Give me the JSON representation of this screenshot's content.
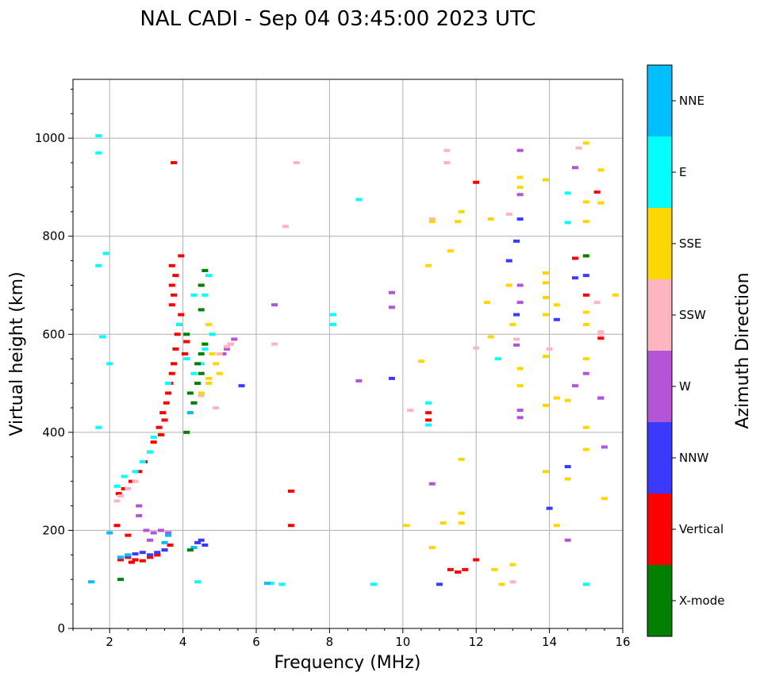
{
  "chart_data": {
    "type": "scatter",
    "title": "NAL CADI - Sep 04 03:45:00 2023 UTC",
    "xlabel": "Frequency (MHz)",
    "ylabel": "Virtual height (km)",
    "xlim": [
      1,
      16
    ],
    "ylim": [
      0,
      1120
    ],
    "xticks": [
      2,
      4,
      6,
      8,
      10,
      12,
      14,
      16
    ],
    "yticks": [
      0,
      200,
      400,
      600,
      800,
      1000
    ],
    "grid": true,
    "colorbar": {
      "label": "Azimuth Direction",
      "position": "right",
      "categories": [
        {
          "name": "X-mode",
          "color": "#008000"
        },
        {
          "name": "Vertical",
          "color": "#ff0000"
        },
        {
          "name": "NNW",
          "color": "#3a3aff"
        },
        {
          "name": "W",
          "color": "#b454d6"
        },
        {
          "name": "SSW",
          "color": "#ffb6c1"
        },
        {
          "name": "SSE",
          "color": "#ffd700"
        },
        {
          "name": "E",
          "color": "#00ffff"
        },
        {
          "name": "NNE",
          "color": "#00bfff"
        }
      ]
    },
    "series": [
      {
        "name": "Vertical",
        "color": "#ff0000",
        "points": [
          [
            2.3,
            140
          ],
          [
            2.5,
            145
          ],
          [
            2.7,
            140
          ],
          [
            2.9,
            138
          ],
          [
            3.1,
            145
          ],
          [
            3.3,
            150
          ],
          [
            3.5,
            160
          ],
          [
            3.65,
            170
          ],
          [
            2.25,
            275
          ],
          [
            2.4,
            285
          ],
          [
            2.6,
            300
          ],
          [
            2.8,
            320
          ],
          [
            2.95,
            340
          ],
          [
            3.1,
            360
          ],
          [
            3.2,
            380
          ],
          [
            3.35,
            410
          ],
          [
            3.45,
            440
          ],
          [
            3.55,
            460
          ],
          [
            3.6,
            480
          ],
          [
            3.65,
            500
          ],
          [
            3.7,
            520
          ],
          [
            3.75,
            540
          ],
          [
            3.8,
            570
          ],
          [
            3.85,
            600
          ],
          [
            3.9,
            620
          ],
          [
            3.95,
            640
          ],
          [
            3.7,
            660
          ],
          [
            3.75,
            680
          ],
          [
            3.7,
            700
          ],
          [
            3.8,
            720
          ],
          [
            3.7,
            740
          ],
          [
            3.95,
            760
          ],
          [
            3.75,
            950
          ],
          [
            2.5,
            190
          ],
          [
            2.2,
            210
          ],
          [
            6.95,
            280
          ],
          [
            6.95,
            210
          ],
          [
            10.7,
            440
          ],
          [
            10.7,
            425
          ],
          [
            11.3,
            120
          ],
          [
            11.5,
            115
          ],
          [
            11.7,
            120
          ],
          [
            12.0,
            140
          ],
          [
            12.0,
            910
          ],
          [
            14.7,
            755
          ],
          [
            15.0,
            680
          ],
          [
            15.3,
            890
          ],
          [
            15.4,
            592
          ],
          [
            3.3,
            150
          ],
          [
            4.05,
            560
          ],
          [
            4.1,
            585
          ],
          [
            3.5,
            425
          ],
          [
            3.4,
            395
          ],
          [
            2.6,
            135
          ]
        ]
      },
      {
        "name": "NNW",
        "color": "#3a3aff",
        "points": [
          [
            2.3,
            145
          ],
          [
            2.5,
            148
          ],
          [
            2.7,
            152
          ],
          [
            2.9,
            155
          ],
          [
            3.1,
            150
          ],
          [
            3.3,
            155
          ],
          [
            3.5,
            160
          ],
          [
            4.3,
            165
          ],
          [
            4.4,
            175
          ],
          [
            4.5,
            180
          ],
          [
            4.6,
            170
          ],
          [
            5.6,
            495
          ],
          [
            9.7,
            510
          ],
          [
            13.2,
            835
          ],
          [
            13.1,
            790
          ],
          [
            12.9,
            750
          ],
          [
            14.2,
            630
          ],
          [
            14.5,
            330
          ],
          [
            14.0,
            245
          ],
          [
            13.1,
            640
          ],
          [
            14.7,
            715
          ],
          [
            15.0,
            720
          ],
          [
            11.0,
            90
          ],
          [
            15.4,
            470
          ]
        ]
      },
      {
        "name": "W",
        "color": "#b454d6",
        "points": [
          [
            3.0,
            200
          ],
          [
            3.2,
            195
          ],
          [
            3.4,
            200
          ],
          [
            3.6,
            195
          ],
          [
            3.1,
            180
          ],
          [
            2.8,
            230
          ],
          [
            2.8,
            250
          ],
          [
            5.1,
            560
          ],
          [
            5.2,
            570
          ],
          [
            5.3,
            580
          ],
          [
            5.4,
            590
          ],
          [
            6.5,
            660
          ],
          [
            8.8,
            505
          ],
          [
            13.2,
            975
          ],
          [
            13.2,
            885
          ],
          [
            13.2,
            700
          ],
          [
            13.2,
            665
          ],
          [
            13.1,
            578
          ],
          [
            14.5,
            180
          ],
          [
            14.7,
            940
          ],
          [
            15.0,
            520
          ],
          [
            15.4,
            470
          ],
          [
            15.5,
            370
          ],
          [
            10.8,
            295
          ],
          [
            9.7,
            655
          ],
          [
            9.7,
            685
          ],
          [
            14.7,
            495
          ],
          [
            13.2,
            430
          ],
          [
            13.2,
            445
          ]
        ]
      },
      {
        "name": "SSW",
        "color": "#ffb6c1",
        "points": [
          [
            2.2,
            260
          ],
          [
            2.3,
            270
          ],
          [
            2.5,
            285
          ],
          [
            2.7,
            300
          ],
          [
            5.0,
            560
          ],
          [
            5.2,
            575
          ],
          [
            5.3,
            580
          ],
          [
            6.5,
            580
          ],
          [
            6.8,
            820
          ],
          [
            7.1,
            950
          ],
          [
            10.2,
            445
          ],
          [
            10.8,
            835
          ],
          [
            11.2,
            975
          ],
          [
            11.2,
            950
          ],
          [
            12.0,
            572
          ],
          [
            12.9,
            845
          ],
          [
            13.1,
            590
          ],
          [
            13.0,
            95
          ],
          [
            14.0,
            570
          ],
          [
            15.3,
            665
          ],
          [
            15.4,
            605
          ],
          [
            15.4,
            600
          ],
          [
            14.8,
            980
          ],
          [
            4.9,
            450
          ],
          [
            4.5,
            475
          ]
        ]
      },
      {
        "name": "SSE",
        "color": "#ffd700",
        "points": [
          [
            4.7,
            620
          ],
          [
            4.8,
            600
          ],
          [
            4.6,
            580
          ],
          [
            4.8,
            560
          ],
          [
            4.9,
            540
          ],
          [
            5.0,
            520
          ],
          [
            4.7,
            500
          ],
          [
            4.5,
            480
          ],
          [
            10.8,
            830
          ],
          [
            10.7,
            740
          ],
          [
            11.3,
            770
          ],
          [
            11.5,
            830
          ],
          [
            11.6,
            850
          ],
          [
            11.6,
            345
          ],
          [
            11.6,
            235
          ],
          [
            11.6,
            215
          ],
          [
            12.4,
            835
          ],
          [
            12.3,
            665
          ],
          [
            12.4,
            595
          ],
          [
            12.5,
            120
          ],
          [
            12.7,
            90
          ],
          [
            12.9,
            700
          ],
          [
            13.0,
            620
          ],
          [
            13.2,
            920
          ],
          [
            13.2,
            900
          ],
          [
            13.2,
            530
          ],
          [
            13.2,
            495
          ],
          [
            13.0,
            130
          ],
          [
            13.9,
            915
          ],
          [
            13.9,
            725
          ],
          [
            13.9,
            705
          ],
          [
            13.9,
            675
          ],
          [
            13.9,
            640
          ],
          [
            13.9,
            555
          ],
          [
            13.9,
            455
          ],
          [
            13.9,
            320
          ],
          [
            14.2,
            660
          ],
          [
            14.2,
            470
          ],
          [
            14.2,
            210
          ],
          [
            14.5,
            465
          ],
          [
            14.5,
            305
          ],
          [
            15.0,
            990
          ],
          [
            15.0,
            870
          ],
          [
            15.0,
            830
          ],
          [
            15.0,
            760
          ],
          [
            15.0,
            645
          ],
          [
            15.0,
            620
          ],
          [
            15.0,
            550
          ],
          [
            15.0,
            410
          ],
          [
            15.0,
            365
          ],
          [
            15.4,
            935
          ],
          [
            15.4,
            868
          ],
          [
            15.5,
            265
          ],
          [
            15.8,
            680
          ],
          [
            10.5,
            545
          ],
          [
            10.1,
            210
          ],
          [
            10.8,
            165
          ],
          [
            11.1,
            215
          ],
          [
            4.2,
            440
          ],
          [
            4.7,
            510
          ]
        ]
      },
      {
        "name": "E",
        "color": "#00ffff",
        "points": [
          [
            1.7,
            1005
          ],
          [
            1.7,
            970
          ],
          [
            1.7,
            740
          ],
          [
            1.9,
            765
          ],
          [
            1.7,
            410
          ],
          [
            1.8,
            595
          ],
          [
            2.0,
            540
          ],
          [
            2.2,
            290
          ],
          [
            2.4,
            310
          ],
          [
            2.7,
            320
          ],
          [
            2.9,
            340
          ],
          [
            3.1,
            360
          ],
          [
            3.2,
            390
          ],
          [
            3.6,
            500
          ],
          [
            3.9,
            620
          ],
          [
            4.1,
            550
          ],
          [
            4.3,
            520
          ],
          [
            4.5,
            540
          ],
          [
            4.6,
            570
          ],
          [
            4.8,
            600
          ],
          [
            8.8,
            875
          ],
          [
            8.1,
            640
          ],
          [
            8.1,
            620
          ],
          [
            10.7,
            460
          ],
          [
            10.7,
            415
          ],
          [
            12.6,
            550
          ],
          [
            14.5,
            828
          ],
          [
            14.5,
            888
          ],
          [
            15.0,
            90
          ],
          [
            6.4,
            92
          ],
          [
            6.7,
            90
          ],
          [
            9.2,
            90
          ],
          [
            4.4,
            95
          ],
          [
            4.6,
            680
          ],
          [
            4.7,
            720
          ],
          [
            4.3,
            680
          ]
        ]
      },
      {
        "name": "NNE",
        "color": "#00bfff",
        "points": [
          [
            2.3,
            145
          ],
          [
            2.5,
            150
          ],
          [
            3.5,
            175
          ],
          [
            3.6,
            190
          ],
          [
            4.2,
            440
          ],
          [
            4.3,
            460
          ],
          [
            6.3,
            92
          ],
          [
            4.3,
            165
          ],
          [
            2.0,
            195
          ],
          [
            1.5,
            95
          ]
        ]
      },
      {
        "name": "X-mode",
        "color": "#008000",
        "points": [
          [
            4.2,
            160
          ],
          [
            4.6,
            730
          ],
          [
            4.5,
            700
          ],
          [
            4.5,
            650
          ],
          [
            4.4,
            540
          ],
          [
            4.5,
            520
          ],
          [
            4.4,
            500
          ],
          [
            4.2,
            480
          ],
          [
            4.3,
            460
          ],
          [
            4.1,
            400
          ],
          [
            4.1,
            600
          ],
          [
            4.5,
            560
          ],
          [
            4.6,
            580
          ],
          [
            15.0,
            760
          ],
          [
            2.3,
            100
          ]
        ]
      }
    ]
  }
}
